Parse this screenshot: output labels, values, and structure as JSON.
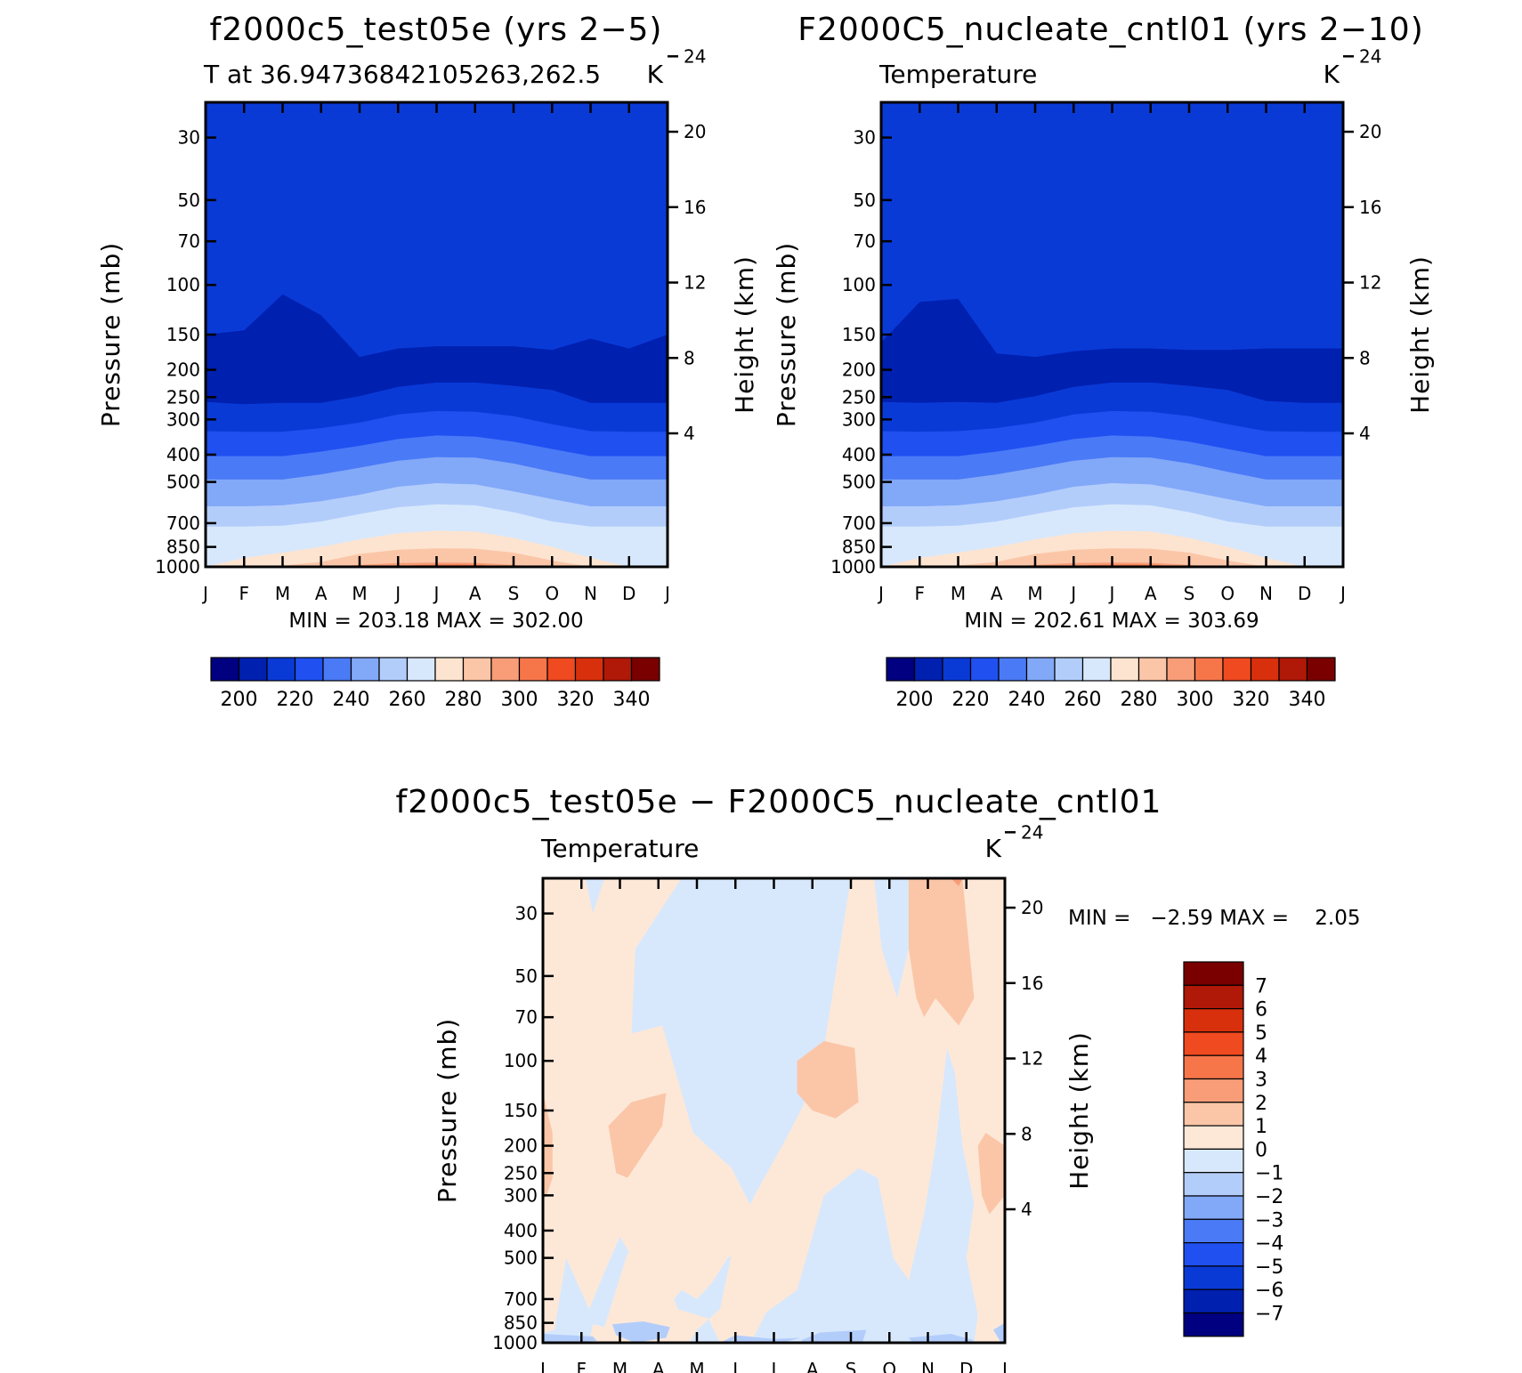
{
  "colors": {
    "abs_scale": [
      "#000080",
      "#0020b0",
      "#0a3ad6",
      "#2050f0",
      "#4a7af6",
      "#82a8f8",
      "#b3cdfb",
      "#d8e8fc",
      "#fde4d0",
      "#fbc6a8",
      "#f89d78",
      "#f6764a",
      "#f04a20",
      "#d8300c",
      "#b01808",
      "#7a0000"
    ],
    "diff_scale": [
      "#000080",
      "#0020b0",
      "#0a3ad6",
      "#2050f0",
      "#4a7af6",
      "#82a8f8",
      "#b3cdfb",
      "#d8e8fc",
      "#fde8d8",
      "#fbc6a8",
      "#f89d78",
      "#f6764a",
      "#f04a20",
      "#d8300c",
      "#b01808",
      "#7a0000"
    ]
  },
  "panels": {
    "top_left": {
      "title": "f2000c5_test05e (yrs 2−5)",
      "left_label": "T at 36.94736842105263,262.5",
      "right_label": "K",
      "minmax": "MIN = 203.18 MAX = 302.00"
    },
    "top_right": {
      "title": "F2000C5_nucleate_cntl01 (yrs 2−10)",
      "left_label": "Temperature",
      "right_label": "K",
      "minmax": "MIN = 202.61 MAX = 303.69"
    },
    "bottom": {
      "title": "f2000c5_test05e − F2000C5_nucleate_cntl01",
      "left_label": "Temperature",
      "right_label": "K",
      "minmax": "MIN =   −2.59 MAX =    2.05"
    }
  },
  "chart_data": [
    {
      "type": "heatmap",
      "title": "f2000c5_test05e (yrs 2−5)",
      "subtitle": "T at 36.94736842105263,262.5",
      "units": "K",
      "ylabel": "Pressure (mb)",
      "y2label": "Height (km)",
      "x_ticklabels": [
        "J",
        "F",
        "M",
        "A",
        "M",
        "J",
        "J",
        "A",
        "S",
        "O",
        "N",
        "D",
        "J"
      ],
      "y_ticks": [
        30,
        50,
        70,
        100,
        150,
        200,
        250,
        300,
        400,
        500,
        700,
        850,
        1000
      ],
      "y2_ticks": [
        24,
        20,
        16,
        12,
        8,
        4
      ],
      "y_scale": "log",
      "min": 203.18,
      "max": 302.0,
      "colorbar_labels": [
        200,
        220,
        240,
        260,
        280,
        300,
        320,
        340
      ],
      "colorbar_levels": [
        195,
        200,
        205,
        210,
        215,
        220,
        225,
        230,
        235,
        240,
        245,
        250,
        255,
        260,
        265,
        270,
        275,
        280,
        285,
        290,
        295,
        300,
        305,
        310,
        315,
        320,
        325,
        330,
        335,
        340,
        345
      ],
      "contour_base_K": [
        206,
        204,
        201,
        201,
        204,
        209,
        222,
        237,
        252,
        265,
        275,
        283,
        288
      ],
      "seasonal_amplitude_K": [
        1,
        1,
        1,
        1,
        2,
        3,
        5,
        6,
        7,
        8,
        9,
        10,
        10
      ]
    },
    {
      "type": "heatmap",
      "title": "F2000C5_nucleate_cntl01 (yrs 2−10)",
      "subtitle": "Temperature",
      "units": "K",
      "ylabel": "Pressure (mb)",
      "y2label": "Height (km)",
      "x_ticklabels": [
        "J",
        "F",
        "M",
        "A",
        "M",
        "J",
        "J",
        "A",
        "S",
        "O",
        "N",
        "D",
        "J"
      ],
      "y_ticks": [
        30,
        50,
        70,
        100,
        150,
        200,
        250,
        300,
        400,
        500,
        700,
        850,
        1000
      ],
      "y2_ticks": [
        24,
        20,
        16,
        12,
        8,
        4
      ],
      "y_scale": "log",
      "min": 202.61,
      "max": 303.69,
      "colorbar_labels": [
        200,
        220,
        240,
        260,
        280,
        300,
        320,
        340
      ]
    },
    {
      "type": "heatmap",
      "title": "f2000c5_test05e − F2000C5_nucleate_cntl01",
      "subtitle": "Temperature",
      "units": "K",
      "ylabel": "Pressure (mb)",
      "y2label": "Height (km)",
      "x_ticklabels": [
        "J",
        "F",
        "M",
        "A",
        "M",
        "J",
        "J",
        "A",
        "S",
        "O",
        "N",
        "D",
        "J"
      ],
      "y_ticks": [
        30,
        50,
        70,
        100,
        150,
        200,
        250,
        300,
        400,
        500,
        700,
        850,
        1000
      ],
      "y2_ticks": [
        24,
        20,
        16,
        12,
        8,
        4
      ],
      "y_scale": "log",
      "min": -2.59,
      "max": 2.05,
      "colorbar_labels": [
        7,
        6,
        5,
        4,
        3,
        2,
        1,
        0,
        -1,
        -2,
        -3,
        -4,
        -5,
        -6,
        -7
      ]
    }
  ],
  "labels": {
    "pressure": "Pressure (mb)",
    "height": "Height (km)",
    "months": [
      "J",
      "F",
      "M",
      "A",
      "M",
      "J",
      "J",
      "A",
      "S",
      "O",
      "N",
      "D",
      "J"
    ],
    "pressure_ticks": [
      "30",
      "50",
      "70",
      "100",
      "150",
      "200",
      "250",
      "300",
      "400",
      "500",
      "700",
      "850",
      "1000"
    ],
    "height_ticks": [
      "24",
      "20",
      "16",
      "12",
      "8",
      "4"
    ],
    "abs_cb_labels": [
      "200",
      "220",
      "240",
      "260",
      "280",
      "300",
      "320",
      "340"
    ],
    "diff_cb_labels": [
      "7",
      "6",
      "5",
      "4",
      "3",
      "2",
      "1",
      "0",
      "−1",
      "−2",
      "−3",
      "−4",
      "−5",
      "−6",
      "−7"
    ]
  }
}
